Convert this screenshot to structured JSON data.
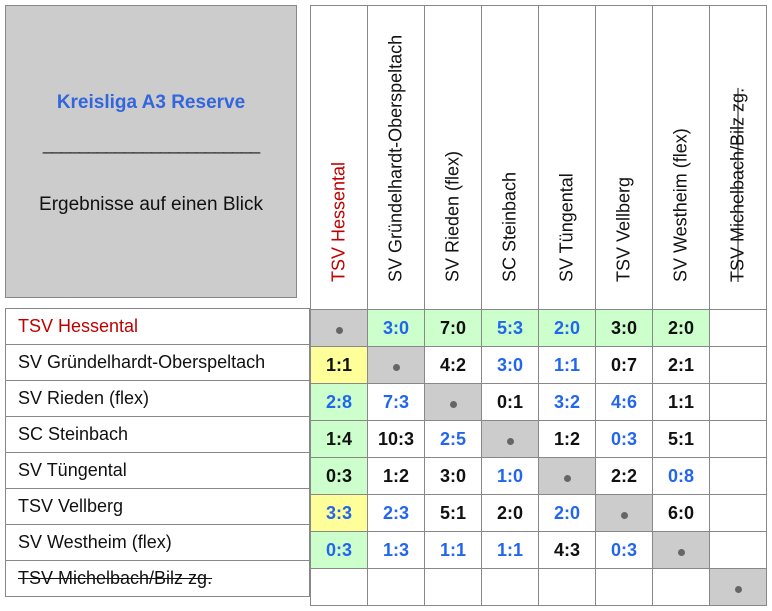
{
  "title": "Kreisliga A3 Reserve",
  "divider": "________________________",
  "subtitle": "Ergebnisse auf einen Blick",
  "teams": [
    "TSV Hessental",
    "SV Gründelhardt-Oberspeltach",
    "SV Rieden (flex)",
    "SC Steinbach",
    "SV Tüngental",
    "TSV Vellberg",
    "SV Westheim (flex)",
    "TSV Michelbach/Bilz zg."
  ],
  "colors": {
    "highlight_team": "#c00000",
    "home_win_green": "#ccffcc",
    "draw_yellow": "#ffff99",
    "blue_result": "#2266ee",
    "diagonal_gray": "#cccccc"
  },
  "results": [
    [
      null,
      {
        "s": "3:0",
        "c": "blue",
        "bg": "green"
      },
      {
        "s": "7:0",
        "c": "black",
        "bg": "green"
      },
      {
        "s": "5:3",
        "c": "blue",
        "bg": "green"
      },
      {
        "s": "2:0",
        "c": "blue",
        "bg": "green"
      },
      {
        "s": "3:0",
        "c": "black",
        "bg": "green"
      },
      {
        "s": "2:0",
        "c": "black",
        "bg": "green"
      },
      {
        "s": "",
        "c": "black",
        "bg": ""
      }
    ],
    [
      {
        "s": "1:1",
        "c": "black",
        "bg": "yellow"
      },
      null,
      {
        "s": "4:2",
        "c": "black",
        "bg": ""
      },
      {
        "s": "3:0",
        "c": "blue",
        "bg": ""
      },
      {
        "s": "1:1",
        "c": "blue",
        "bg": ""
      },
      {
        "s": "0:7",
        "c": "black",
        "bg": ""
      },
      {
        "s": "2:1",
        "c": "black",
        "bg": ""
      },
      {
        "s": "",
        "c": "black",
        "bg": ""
      }
    ],
    [
      {
        "s": "2:8",
        "c": "blue",
        "bg": "green"
      },
      {
        "s": "7:3",
        "c": "blue",
        "bg": ""
      },
      null,
      {
        "s": "0:1",
        "c": "black",
        "bg": ""
      },
      {
        "s": "3:2",
        "c": "blue",
        "bg": ""
      },
      {
        "s": "4:6",
        "c": "blue",
        "bg": ""
      },
      {
        "s": "1:1",
        "c": "black",
        "bg": ""
      },
      {
        "s": "",
        "c": "black",
        "bg": ""
      }
    ],
    [
      {
        "s": "1:4",
        "c": "black",
        "bg": "green"
      },
      {
        "s": "10:3",
        "c": "black",
        "bg": ""
      },
      {
        "s": "2:5",
        "c": "blue",
        "bg": ""
      },
      null,
      {
        "s": "1:2",
        "c": "black",
        "bg": ""
      },
      {
        "s": "0:3",
        "c": "blue",
        "bg": ""
      },
      {
        "s": "5:1",
        "c": "black",
        "bg": ""
      },
      {
        "s": "",
        "c": "black",
        "bg": ""
      }
    ],
    [
      {
        "s": "0:3",
        "c": "black",
        "bg": "green"
      },
      {
        "s": "1:2",
        "c": "black",
        "bg": ""
      },
      {
        "s": "3:0",
        "c": "black",
        "bg": ""
      },
      {
        "s": "1:0",
        "c": "blue",
        "bg": ""
      },
      null,
      {
        "s": "2:2",
        "c": "black",
        "bg": ""
      },
      {
        "s": "0:8",
        "c": "blue",
        "bg": ""
      },
      {
        "s": "",
        "c": "black",
        "bg": ""
      }
    ],
    [
      {
        "s": "3:3",
        "c": "blue",
        "bg": "yellow"
      },
      {
        "s": "2:3",
        "c": "blue",
        "bg": ""
      },
      {
        "s": "5:1",
        "c": "black",
        "bg": ""
      },
      {
        "s": "2:0",
        "c": "black",
        "bg": ""
      },
      {
        "s": "2:0",
        "c": "blue",
        "bg": ""
      },
      null,
      {
        "s": "6:0",
        "c": "black",
        "bg": ""
      },
      {
        "s": "",
        "c": "black",
        "bg": ""
      }
    ],
    [
      {
        "s": "0:3",
        "c": "blue",
        "bg": "green"
      },
      {
        "s": "1:3",
        "c": "blue",
        "bg": ""
      },
      {
        "s": "1:1",
        "c": "blue",
        "bg": ""
      },
      {
        "s": "1:1",
        "c": "blue",
        "bg": ""
      },
      {
        "s": "4:3",
        "c": "black",
        "bg": ""
      },
      {
        "s": "0:3",
        "c": "blue",
        "bg": ""
      },
      null,
      {
        "s": "",
        "c": "black",
        "bg": ""
      }
    ],
    [
      {
        "s": "",
        "c": "black",
        "bg": ""
      },
      {
        "s": "",
        "c": "black",
        "bg": ""
      },
      {
        "s": "",
        "c": "black",
        "bg": ""
      },
      {
        "s": "",
        "c": "black",
        "bg": ""
      },
      {
        "s": "",
        "c": "black",
        "bg": ""
      },
      {
        "s": "",
        "c": "black",
        "bg": ""
      },
      {
        "s": "",
        "c": "black",
        "bg": ""
      },
      null
    ]
  ]
}
